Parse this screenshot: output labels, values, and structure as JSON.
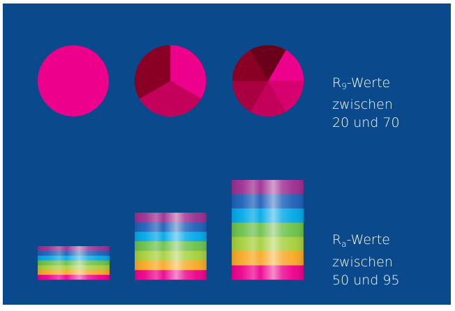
{
  "colors": {
    "background": "#0a4a8c",
    "pink": "#ec008c",
    "magenta_mid": "#c3005a",
    "dark_red": "#8a0025",
    "darker_red": "#6a001a"
  },
  "r9_label": {
    "prefix": "R",
    "subscript": "9",
    "suffix": "-Werte",
    "line2": "zwischen",
    "line3": "20 und 70"
  },
  "ra_label": {
    "prefix": "R",
    "subscript": "a",
    "suffix": "-Werte",
    "line2": "zwischen",
    "line3": "50 und 95"
  },
  "pies": [
    {
      "segments": 1,
      "segment_colors": [
        "#ec008c"
      ]
    },
    {
      "segments": 3,
      "segment_colors": [
        "#ec008c",
        "#c3005a",
        "#8a0025"
      ]
    },
    {
      "segments": 6,
      "segment_colors": [
        "#ec008c",
        "#d6006e",
        "#c3005a",
        "#a80040",
        "#8a0025",
        "#6a001a"
      ]
    }
  ],
  "spectrum_blocks": [
    {
      "bands": [
        "#9b2d8f",
        "#1d5fb8",
        "#00a8e8",
        "#6cc04a",
        "#a6cf3a",
        "#f7a823",
        "#ec008c"
      ]
    },
    {
      "bands": [
        "#9b2d8f",
        "#1d5fb8",
        "#00a8e8",
        "#6cc04a",
        "#a6cf3a",
        "#f7a823",
        "#ec008c"
      ]
    },
    {
      "bands": [
        "#9b2d8f",
        "#1d5fb8",
        "#00a8e8",
        "#6cc04a",
        "#a6cf3a",
        "#f7a823",
        "#ec008c"
      ]
    }
  ]
}
